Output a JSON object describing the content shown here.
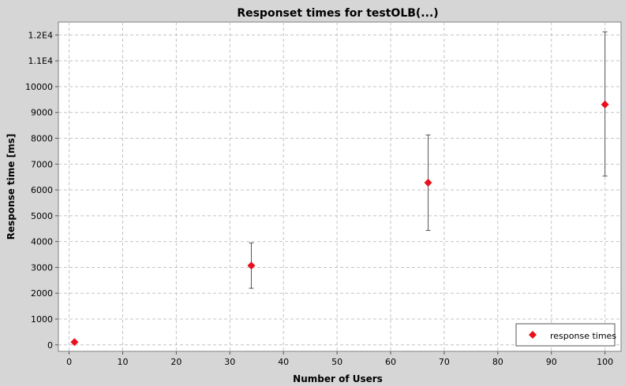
{
  "chart_data": {
    "type": "scatter",
    "title": "Responset times for testOLB(...)",
    "xlabel": "Number of Users",
    "ylabel": "Response time [ms]",
    "xlim": [
      -2,
      103
    ],
    "ylim": [
      -250,
      12500
    ],
    "x_ticks": [
      0,
      10,
      20,
      30,
      40,
      50,
      60,
      70,
      80,
      90,
      100
    ],
    "y_ticks": [
      {
        "value": 0,
        "label": "0"
      },
      {
        "value": 1000,
        "label": "1000"
      },
      {
        "value": 2000,
        "label": "2000"
      },
      {
        "value": 3000,
        "label": "3000"
      },
      {
        "value": 4000,
        "label": "4000"
      },
      {
        "value": 5000,
        "label": "5000"
      },
      {
        "value": 6000,
        "label": "6000"
      },
      {
        "value": 7000,
        "label": "7000"
      },
      {
        "value": 8000,
        "label": "8000"
      },
      {
        "value": 9000,
        "label": "9000"
      },
      {
        "value": 10000,
        "label": "10000"
      },
      {
        "value": 11000,
        "label": "1.1E4"
      },
      {
        "value": 12000,
        "label": "1.2E4"
      }
    ],
    "grid": true,
    "legend_position": "bottom-right",
    "series": [
      {
        "name": "response times",
        "color": "#e8101a",
        "marker": "diamond",
        "points": [
          {
            "x": 1,
            "y": 110,
            "err_low": 110,
            "err_high": 110
          },
          {
            "x": 34,
            "y": 3070,
            "err_low": 2190,
            "err_high": 3950
          },
          {
            "x": 67,
            "y": 6280,
            "err_low": 4430,
            "err_high": 8130
          },
          {
            "x": 100,
            "y": 9310,
            "err_low": 6540,
            "err_high": 12120
          }
        ]
      }
    ]
  }
}
